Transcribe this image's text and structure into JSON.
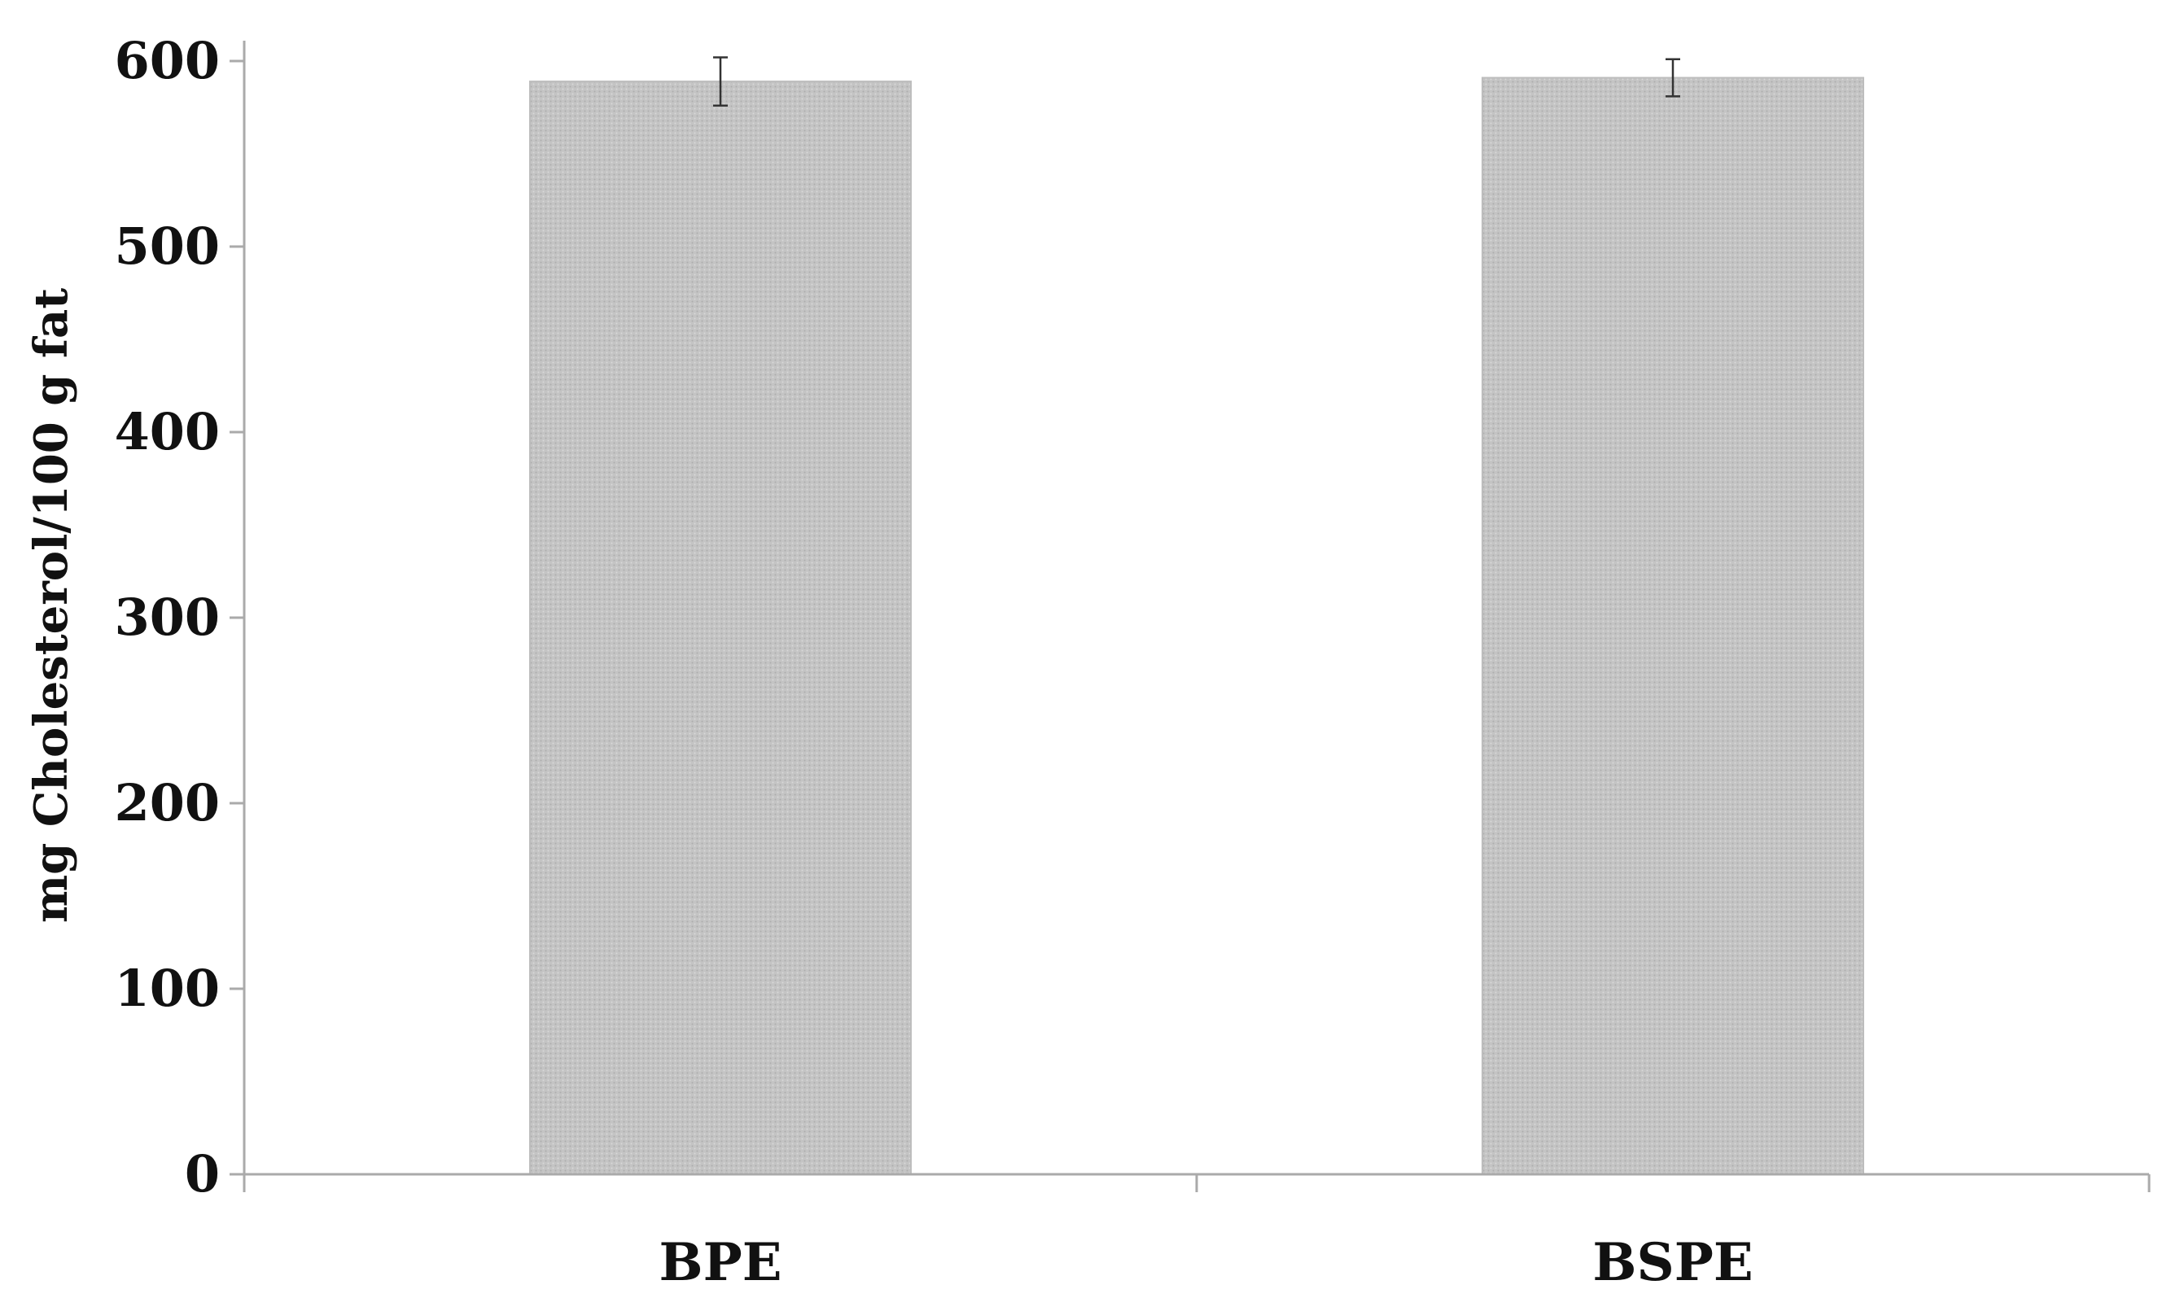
{
  "chart_data": {
    "type": "bar",
    "title": "",
    "xlabel": "",
    "ylabel": "mg Cholesterol/100 g fat",
    "categories": [
      "BPE",
      "BSPE"
    ],
    "values": [
      589,
      591
    ],
    "error": [
      13,
      10
    ],
    "ylim": [
      0,
      600
    ],
    "yticks": [
      0,
      100,
      200,
      300,
      400,
      500,
      600
    ],
    "ytick_labels": [
      "0",
      "100",
      "200",
      "300",
      "400",
      "500",
      "600"
    ],
    "grid": false,
    "legend": "none",
    "bar_color": "#c2c2c2",
    "bar_pattern": "dotted",
    "error_bar_color": "#333333",
    "axis_color": "#aaaaaa"
  }
}
